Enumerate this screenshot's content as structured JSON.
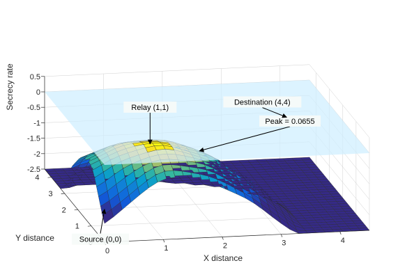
{
  "chart_data": {
    "type": "surface",
    "xlabel": "X distance",
    "ylabel": "Y distance",
    "zlabel": "Secrecy rate",
    "xlim": [
      0,
      4.5
    ],
    "ylim": [
      0,
      4.5
    ],
    "zlim": [
      -2.5,
      0.5
    ],
    "x_ticks": [
      "0",
      "1",
      "2",
      "3",
      "4"
    ],
    "y_ticks": [
      "0",
      "1",
      "2",
      "3",
      "4"
    ],
    "z_ticks": [
      "0.5",
      "0",
      "-0.5",
      "-1",
      "-1.5",
      "-2",
      "-2.5"
    ],
    "z_plane": 0,
    "grid": true,
    "colormap": "parula",
    "plane_color": "#cfefff",
    "annotations": [
      {
        "text": "Relay (1,1)",
        "x": 1,
        "y": 1,
        "z": 0.0655
      },
      {
        "text": "Peak = 0.0655",
        "x": 1.2,
        "y": 0.8,
        "z": 0.0655
      },
      {
        "text": "Source (0,0)",
        "x": 0,
        "y": 0,
        "z": -1.3
      },
      {
        "text": "Destination (4,4)",
        "x": 4,
        "y": 4,
        "z": -0.9
      }
    ]
  }
}
